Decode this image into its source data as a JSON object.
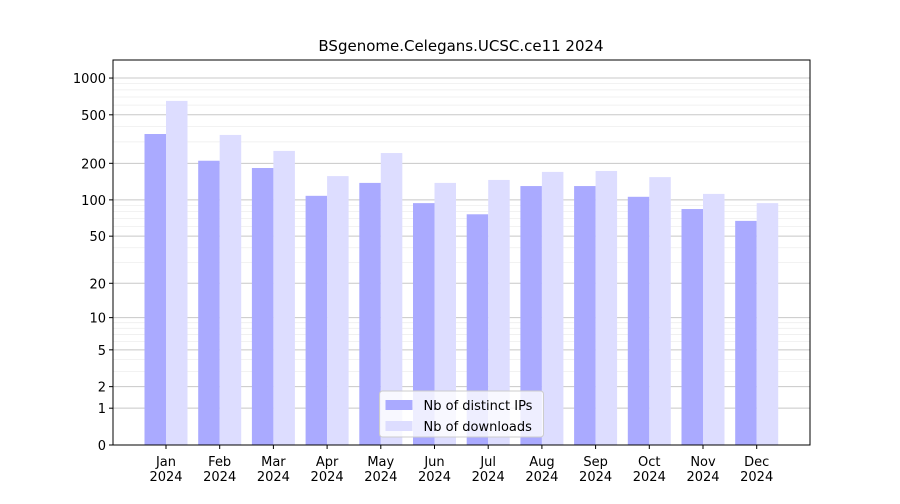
{
  "chart_data": {
    "type": "bar",
    "title": "BSgenome.Celegans.UCSC.ce11 2024",
    "categories": [
      [
        "Jan",
        "2024"
      ],
      [
        "Feb",
        "2024"
      ],
      [
        "Mar",
        "2024"
      ],
      [
        "Apr",
        "2024"
      ],
      [
        "May",
        "2024"
      ],
      [
        "Jun",
        "2024"
      ],
      [
        "Jul",
        "2024"
      ],
      [
        "Aug",
        "2024"
      ],
      [
        "Sep",
        "2024"
      ],
      [
        "Oct",
        "2024"
      ],
      [
        "Nov",
        "2024"
      ],
      [
        "Dec",
        "2024"
      ]
    ],
    "series": [
      {
        "name": "Nb of distinct IPs",
        "color": "#aaaaff",
        "values": [
          348,
          210,
          183,
          108,
          138,
          94,
          76,
          130,
          130,
          106,
          84,
          67
        ]
      },
      {
        "name": "Nb of downloads",
        "color": "#ddddff",
        "values": [
          650,
          342,
          253,
          157,
          243,
          138,
          146,
          170,
          173,
          154,
          112,
          94
        ]
      }
    ],
    "yscale": "log1p",
    "ylim": [
      0,
      1405
    ],
    "yticks": [
      0,
      1,
      2,
      5,
      10,
      20,
      50,
      100,
      200,
      500,
      1000
    ],
    "minor_yticks": [
      3,
      4,
      6,
      7,
      8,
      9,
      30,
      40,
      60,
      70,
      80,
      90,
      300,
      400,
      600,
      700,
      800,
      900
    ],
    "grid": true,
    "legend": "lower center"
  }
}
